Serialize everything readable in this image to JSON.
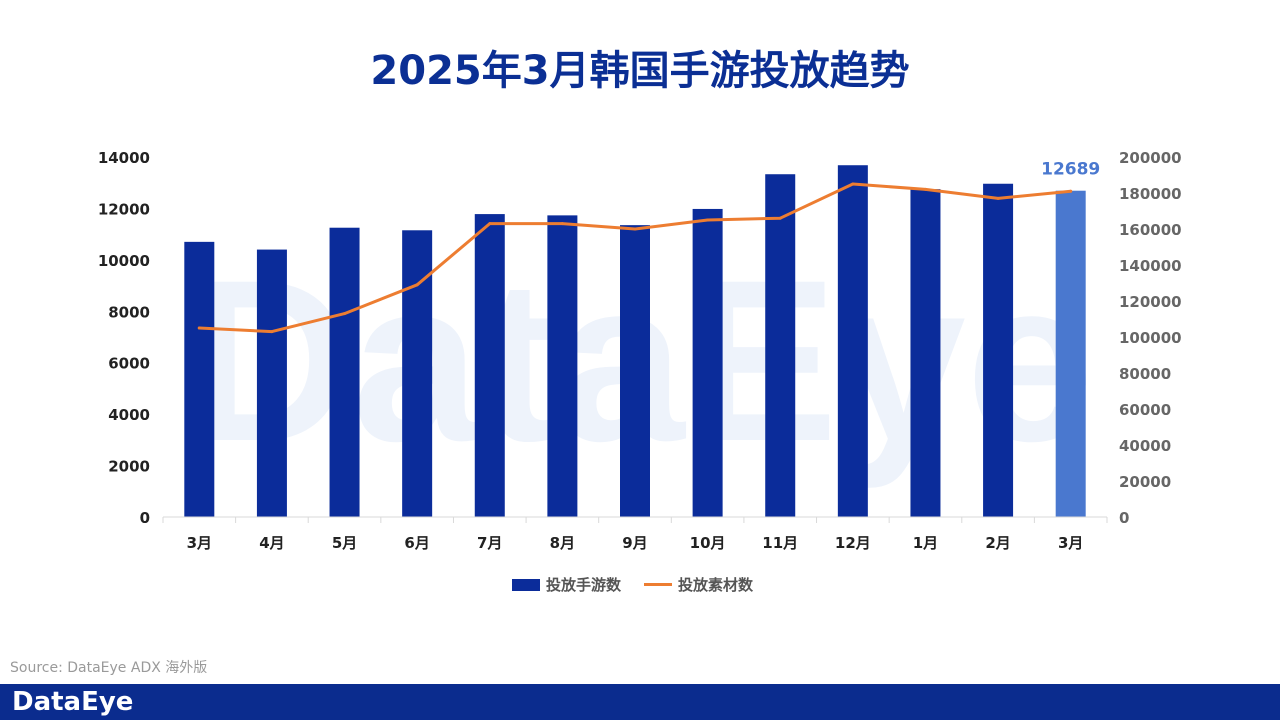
{
  "title": "2025年3月韩国手游投放趋势",
  "watermark": "DataEye",
  "source": "Source: DataEye ADX 海外版",
  "footer_logo": "DataEye",
  "colors": {
    "title": "#0b2f94",
    "bar": "#0b2c9a",
    "bar_highlight": "#4a78cf",
    "line": "#ed7d31",
    "footer": "#0b2c8e",
    "watermark": "#eef3fb"
  },
  "chart_data": {
    "type": "bar",
    "categories": [
      "3月",
      "4月",
      "5月",
      "6月",
      "7月",
      "8月",
      "9月",
      "10月",
      "11月",
      "12月",
      "1月",
      "2月",
      "3月"
    ],
    "series": [
      {
        "name": "投放手游数",
        "type": "bar",
        "axis": "left",
        "values": [
          10700,
          10400,
          11250,
          11150,
          11780,
          11730,
          11350,
          11980,
          13330,
          13680,
          12750,
          12960,
          12689
        ]
      },
      {
        "name": "投放素材数",
        "type": "line",
        "axis": "right",
        "values": [
          105000,
          103000,
          113000,
          129000,
          163000,
          163000,
          160000,
          165000,
          166000,
          185000,
          182000,
          177000,
          181000
        ]
      }
    ],
    "highlight_index": 12,
    "highlight_label": "12689",
    "y_left": {
      "range": [
        0,
        14000
      ],
      "ticks": [
        "0",
        "2000",
        "4000",
        "6000",
        "8000",
        "10000",
        "12000",
        "14000"
      ]
    },
    "y_right": {
      "range": [
        0,
        200000
      ],
      "ticks": [
        "0",
        "20000",
        "40000",
        "60000",
        "80000",
        "100000",
        "120000",
        "140000",
        "160000",
        "180000",
        "200000"
      ]
    },
    "grid": false,
    "legend_position": "bottom"
  }
}
